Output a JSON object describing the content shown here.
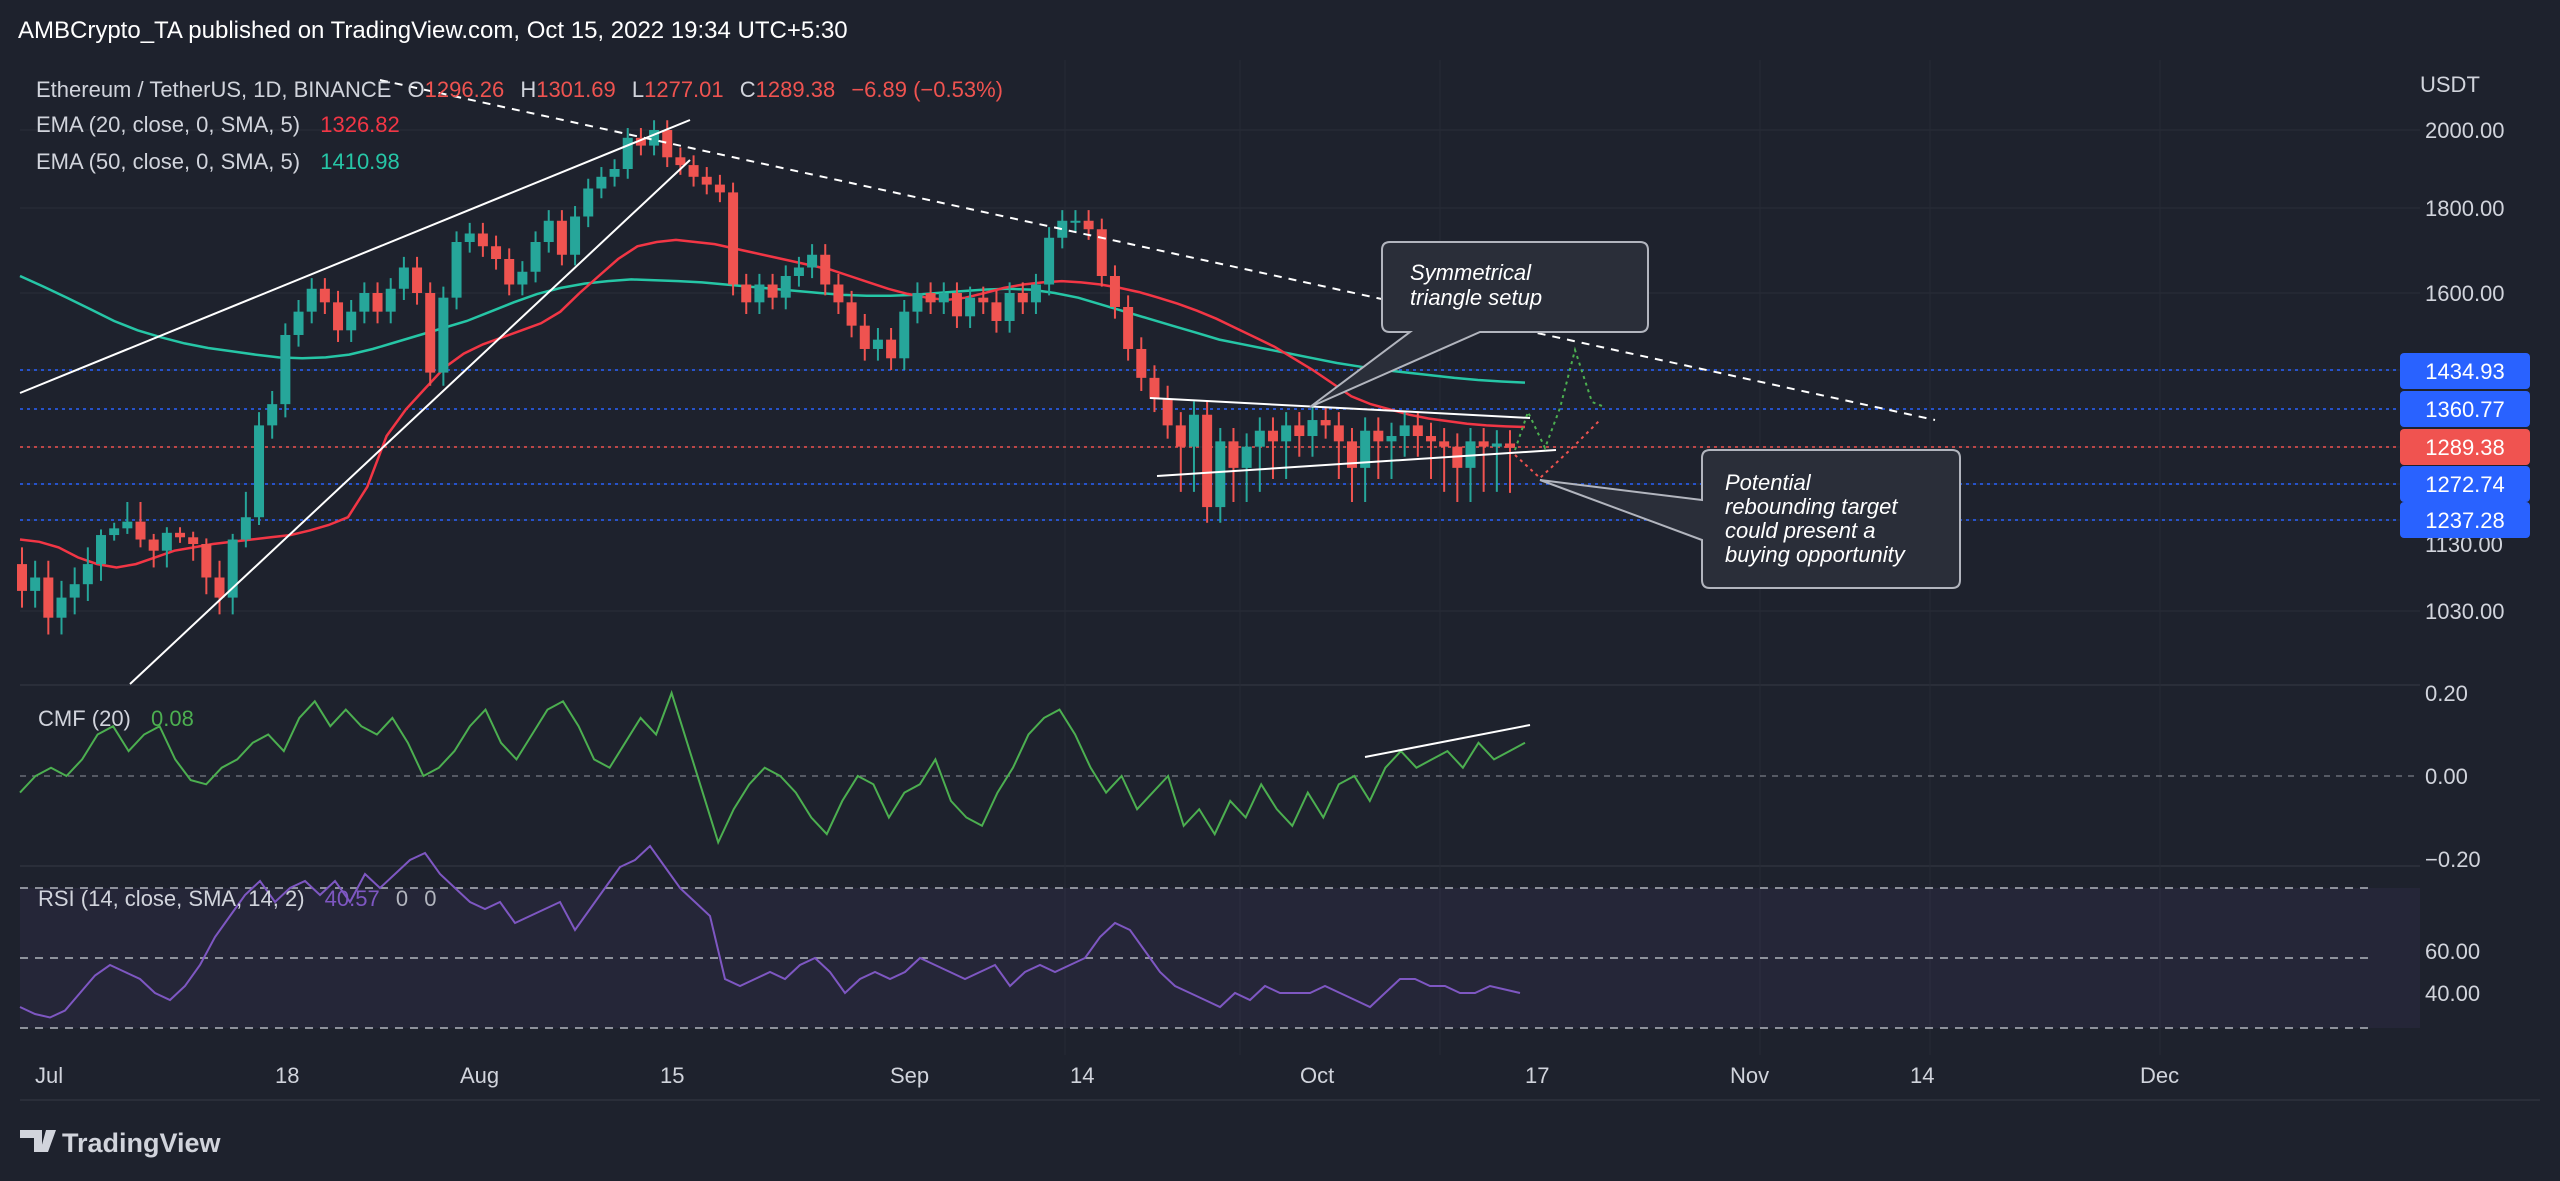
{
  "header": {
    "published": "AMBCrypto_TA published on TradingView.com, Oct 15, 2022 19:34 UTC+5:30"
  },
  "footer": {
    "brand": "TradingView"
  },
  "legend": {
    "symbol": "Ethereum / TetherUS, 1D, BINANCE",
    "open_label": "O",
    "open": "1296.26",
    "high_label": "H",
    "high": "1301.69",
    "low_label": "L",
    "low": "1277.01",
    "close_label": "C",
    "close": "1289.38",
    "change": "−6.89 (−0.53%)",
    "ema20_label": "EMA (20, close, 0, SMA, 5)",
    "ema20_value": "1326.82",
    "ema50_label": "EMA (50, close, 0, SMA, 5)",
    "ema50_value": "1410.98",
    "cmf_label": "CMF (20)",
    "cmf_value": "0.08",
    "rsi_label": "RSI (14, close, SMA, 14, 2)",
    "rsi_value": "40.57",
    "rsi_extra1": "0",
    "rsi_extra2": "0"
  },
  "colors": {
    "background": "#1e222d",
    "up": "#26a69a",
    "down": "#ef5350",
    "ema20": "#f23645",
    "ema50": "#26c6a6",
    "cmf": "#4caf50",
    "rsi": "#7e57c2",
    "price_badge_blue": "#2962ff",
    "price_badge_red": "#f05350"
  },
  "annotations": [
    {
      "id": "triangle",
      "lines": [
        "Symmetrical",
        "triangle setup"
      ]
    },
    {
      "id": "target",
      "lines": [
        "Potential",
        "rebounding target",
        "could present a",
        "buying opportunity"
      ]
    }
  ],
  "chart_data": {
    "type": "candlestick",
    "unit": "USDT",
    "price_axis_ticks": [
      1030.0,
      1130.0,
      1600.0,
      1800.0,
      2000.0
    ],
    "price_axis_labels": [
      "1030.00",
      "1130.00",
      "1600.00",
      "1800.00",
      "2000.00"
    ],
    "x_axis_labels": [
      "Jul",
      "18",
      "Aug",
      "15",
      "Sep",
      "14",
      "Oct",
      "17",
      "Nov",
      "14",
      "Dec"
    ],
    "level_badges": [
      {
        "value": 1434.93,
        "label": "1434.93",
        "color": "#2962ff"
      },
      {
        "value": 1360.77,
        "label": "1360.77",
        "color": "#2962ff"
      },
      {
        "value": 1289.38,
        "label": "1289.38",
        "color": "#f05350"
      },
      {
        "value": 1272.74,
        "label": "1272.74",
        "color": "#2962ff"
      },
      {
        "value": 1237.28,
        "label": "1237.28",
        "color": "#2962ff"
      }
    ],
    "candles_close": [
      1060,
      1080,
      1020,
      1050,
      1070,
      1100,
      1170,
      1200,
      1230,
      1150,
      1120,
      1180,
      1160,
      1130,
      1080,
      1050,
      1150,
      1240,
      1330,
      1370,
      1510,
      1560,
      1610,
      1580,
      1520,
      1560,
      1600,
      1560,
      1610,
      1660,
      1600,
      1430,
      1590,
      1720,
      1740,
      1710,
      1680,
      1620,
      1650,
      1720,
      1770,
      1690,
      1780,
      1850,
      1880,
      1900,
      1980,
      1960,
      2000,
      1930,
      1910,
      1880,
      1860,
      1840,
      1620,
      1580,
      1620,
      1590,
      1640,
      1660,
      1690,
      1620,
      1580,
      1530,
      1480,
      1500,
      1460,
      1560,
      1600,
      1580,
      1600,
      1550,
      1590,
      1580,
      1540,
      1600,
      1580,
      1620,
      1730,
      1770,
      1770,
      1750,
      1640,
      1570,
      1480,
      1420,
      1380,
      1330,
      1290,
      1350,
      1250,
      1300,
      1280,
      1290,
      1320,
      1300,
      1330,
      1310,
      1340,
      1330,
      1300,
      1280,
      1320,
      1300,
      1310,
      1330,
      1310,
      1300,
      1290,
      1280,
      1300,
      1290,
      1296,
      1289
    ],
    "candles_open": [
      1100,
      1060,
      1080,
      1020,
      1050,
      1070,
      1100,
      1170,
      1200,
      1230,
      1150,
      1120,
      1180,
      1160,
      1130,
      1080,
      1050,
      1150,
      1240,
      1330,
      1370,
      1510,
      1560,
      1610,
      1580,
      1520,
      1560,
      1600,
      1560,
      1610,
      1660,
      1600,
      1430,
      1590,
      1720,
      1740,
      1710,
      1680,
      1620,
      1650,
      1720,
      1770,
      1690,
      1780,
      1850,
      1880,
      1900,
      1980,
      1960,
      2000,
      1930,
      1910,
      1880,
      1860,
      1840,
      1620,
      1580,
      1620,
      1590,
      1640,
      1660,
      1690,
      1620,
      1580,
      1530,
      1480,
      1500,
      1460,
      1560,
      1600,
      1580,
      1600,
      1550,
      1590,
      1580,
      1540,
      1600,
      1580,
      1620,
      1730,
      1770,
      1770,
      1750,
      1640,
      1570,
      1480,
      1420,
      1380,
      1330,
      1290,
      1350,
      1250,
      1300,
      1280,
      1290,
      1320,
      1300,
      1330,
      1310,
      1340,
      1330,
      1300,
      1280,
      1320,
      1300,
      1310,
      1330,
      1310,
      1300,
      1290,
      1280,
      1300,
      1290,
      1296
    ],
    "ema20": [
      1150,
      1140,
      1125,
      1110,
      1100,
      1095,
      1100,
      1110,
      1120,
      1125,
      1130,
      1140,
      1150,
      1160,
      1170,
      1190,
      1215,
      1240,
      1270,
      1310,
      1360,
      1400,
      1440,
      1470,
      1490,
      1505,
      1520,
      1535,
      1560,
      1600,
      1640,
      1680,
      1710,
      1720,
      1725,
      1720,
      1715,
      1705,
      1695,
      1685,
      1675,
      1665,
      1655,
      1640,
      1625,
      1610,
      1598,
      1590,
      1585,
      1590,
      1600,
      1612,
      1620,
      1625,
      1628,
      1625,
      1620,
      1612,
      1602,
      1590,
      1577,
      1562,
      1545,
      1525,
      1505,
      1485,
      1460,
      1435,
      1410,
      1385,
      1370,
      1360,
      1350,
      1343,
      1338,
      1333,
      1330,
      1328,
      1327
    ],
    "ema50": [
      1640,
      1615,
      1590,
      1565,
      1540,
      1520,
      1505,
      1492,
      1482,
      1475,
      1468,
      1462,
      1460,
      1462,
      1468,
      1480,
      1495,
      1510,
      1525,
      1540,
      1560,
      1580,
      1598,
      1612,
      1622,
      1628,
      1632,
      1630,
      1628,
      1625,
      1620,
      1615,
      1610,
      1605,
      1600,
      1596,
      1594,
      1594,
      1596,
      1600,
      1604,
      1608,
      1610,
      1608,
      1600,
      1590,
      1575,
      1560,
      1545,
      1530,
      1515,
      1500,
      1490,
      1480,
      1470,
      1460,
      1450,
      1442,
      1435,
      1430,
      1425,
      1420,
      1416,
      1413,
      1411
    ],
    "cmf": [
      -0.04,
      0.0,
      0.02,
      0.0,
      0.04,
      0.1,
      0.12,
      0.06,
      0.1,
      0.12,
      0.04,
      -0.01,
      -0.02,
      0.02,
      0.04,
      0.08,
      0.1,
      0.06,
      0.14,
      0.18,
      0.12,
      0.16,
      0.12,
      0.1,
      0.14,
      0.08,
      0.0,
      0.02,
      0.06,
      0.12,
      0.16,
      0.08,
      0.04,
      0.1,
      0.16,
      0.18,
      0.12,
      0.04,
      0.02,
      0.08,
      0.14,
      0.1,
      0.2,
      0.08,
      -0.04,
      -0.16,
      -0.08,
      -0.02,
      0.02,
      0.0,
      -0.04,
      -0.1,
      -0.14,
      -0.06,
      0.0,
      -0.02,
      -0.1,
      -0.04,
      -0.02,
      0.04,
      -0.06,
      -0.1,
      -0.12,
      -0.04,
      0.02,
      0.1,
      0.14,
      0.16,
      0.1,
      0.02,
      -0.04,
      0.0,
      -0.08,
      -0.04,
      0.0,
      -0.12,
      -0.08,
      -0.14,
      -0.06,
      -0.1,
      -0.02,
      -0.08,
      -0.12,
      -0.04,
      -0.1,
      -0.02,
      0.0,
      -0.06,
      0.02,
      0.06,
      0.02,
      0.04,
      0.06,
      0.02,
      0.08,
      0.04,
      0.06,
      0.08
    ],
    "cmf_axis_labels": [
      "0.20",
      "0.00",
      "−0.20"
    ],
    "rsi": [
      36,
      34,
      33,
      35,
      40,
      45,
      48,
      46,
      44,
      40,
      38,
      42,
      48,
      56,
      62,
      68,
      72,
      66,
      70,
      72,
      68,
      72,
      66,
      74,
      70,
      74,
      78,
      80,
      74,
      70,
      66,
      64,
      66,
      60,
      62,
      64,
      66,
      58,
      64,
      70,
      76,
      78,
      82,
      76,
      70,
      66,
      62,
      44,
      42,
      44,
      46,
      44,
      48,
      50,
      46,
      40,
      44,
      46,
      44,
      46,
      50,
      48,
      46,
      44,
      46,
      48,
      42,
      46,
      48,
      46,
      48,
      50,
      56,
      60,
      58,
      52,
      46,
      42,
      40,
      38,
      36,
      40,
      38,
      42,
      40,
      40,
      40,
      42,
      40,
      38,
      36,
      40,
      44,
      44,
      42,
      42,
      40,
      40,
      42,
      41,
      40
    ],
    "rsi_axis_labels": [
      "60.00",
      "40.00"
    ]
  }
}
